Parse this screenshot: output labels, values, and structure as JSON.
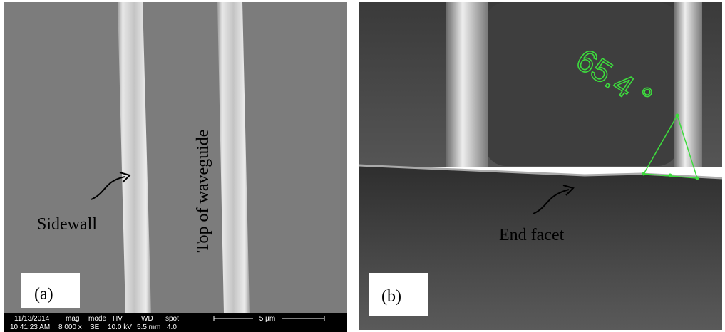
{
  "panel_a": {
    "label": "(a)",
    "annotations": {
      "sidewall": "Sidewall",
      "top": "Top of waveguide"
    },
    "info_bar": {
      "date": "11/13/2014",
      "time": "10:41:23 AM",
      "mag_label": "mag",
      "mag": "8 000 x",
      "mode_label": "mode",
      "mode": "SE",
      "hv_label": "HV",
      "hv": "10.0 kV",
      "wd_label": "WD",
      "wd": "5.5 mm",
      "spot_label": "spot",
      "spot": "4.0",
      "scale_bar": "5 µm"
    }
  },
  "panel_b": {
    "label": "(b)",
    "annotation": "End facet",
    "angle": "65.4 °"
  }
}
